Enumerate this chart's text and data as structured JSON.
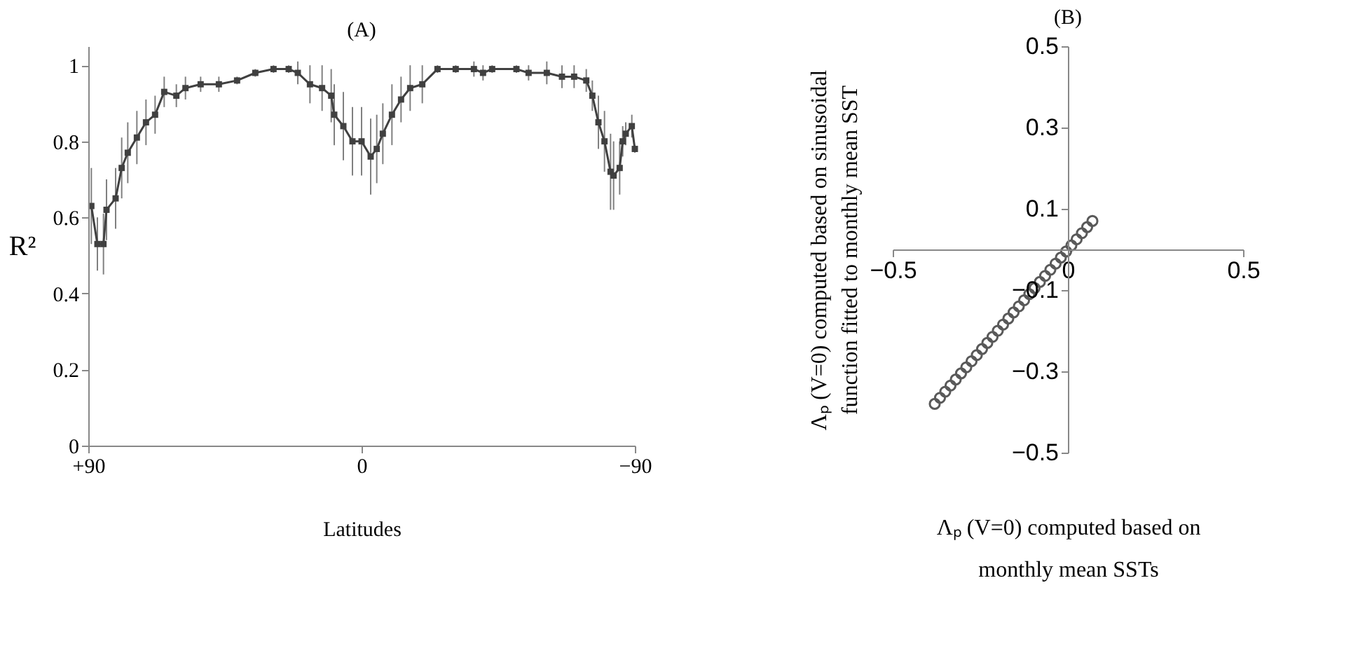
{
  "chart_data": [
    {
      "type": "line",
      "title": "(A)",
      "xlabel": "Latitudes",
      "ylabel": "R²",
      "x": [
        89,
        87,
        85,
        84,
        81,
        79,
        77,
        74,
        71,
        68,
        65,
        61,
        58,
        53,
        47,
        41,
        35,
        29,
        24,
        21,
        17,
        13,
        10,
        9,
        6,
        3,
        0,
        -3,
        -5,
        -7,
        -10,
        -13,
        -16,
        -20,
        -25,
        -31,
        -37,
        -40,
        -43,
        -51,
        -55,
        -61,
        -66,
        -70,
        -74,
        -76,
        -78,
        -80,
        -82,
        -83,
        -85,
        -86,
        -87,
        -89,
        -90
      ],
      "series": [
        {
          "color": "#404040",
          "values": [
            0.63,
            0.53,
            0.53,
            0.62,
            0.65,
            0.73,
            0.77,
            0.81,
            0.85,
            0.87,
            0.93,
            0.92,
            0.94,
            0.95,
            0.95,
            0.96,
            0.98,
            0.99,
            0.99,
            0.98,
            0.95,
            0.94,
            0.92,
            0.87,
            0.84,
            0.8,
            0.8,
            0.76,
            0.78,
            0.82,
            0.87,
            0.91,
            0.94,
            0.95,
            0.99,
            0.99,
            0.99,
            0.98,
            0.99,
            0.99,
            0.98,
            0.98,
            0.97,
            0.97,
            0.96,
            0.92,
            0.85,
            0.8,
            0.72,
            0.71,
            0.73,
            0.8,
            0.82,
            0.84,
            0.78
          ],
          "errors": [
            0.1,
            0.07,
            0.08,
            0.08,
            0.08,
            0.08,
            0.08,
            0.07,
            0.06,
            0.05,
            0.04,
            0.03,
            0.03,
            0.02,
            0.02,
            0.01,
            0.01,
            0.01,
            0.01,
            0.03,
            0.05,
            0.06,
            0.07,
            0.08,
            0.09,
            0.09,
            0.09,
            0.1,
            0.09,
            0.08,
            0.08,
            0.06,
            0.06,
            0.05,
            0.01,
            0.01,
            0.02,
            0.02,
            0.01,
            0.01,
            0.02,
            0.03,
            0.03,
            0.03,
            0.03,
            0.04,
            0.07,
            0.08,
            0.1,
            0.09,
            0.07,
            0.04,
            0.03,
            0.03,
            0.01
          ]
        }
      ],
      "xlim": [
        90,
        -90
      ],
      "xticks": [
        {
          "value": 90,
          "label": "+90"
        },
        0,
        -90
      ],
      "ylim": [
        0,
        1.05
      ],
      "yticks": [
        0,
        0.2,
        0.4,
        0.6,
        0.8,
        1
      ],
      "marker": "square",
      "grid": false
    },
    {
      "type": "scatter",
      "title": "(B)",
      "xlabel": "Λₚ (V=0) computed based on monthly mean SSTs",
      "ylabel": "Λₚ (V=0) computed based on sinusoidal function fitted to monthly mean SST",
      "x": [
        -0.38,
        -0.365,
        -0.35,
        -0.335,
        -0.32,
        -0.305,
        -0.29,
        -0.275,
        -0.26,
        -0.245,
        -0.23,
        -0.215,
        -0.2,
        -0.185,
        -0.17,
        -0.155,
        -0.14,
        -0.125,
        -0.11,
        -0.095,
        -0.08,
        -0.065,
        -0.05,
        -0.035,
        -0.02,
        -0.005,
        0.01,
        0.025,
        0.04,
        0.055,
        0.07
      ],
      "series": [
        {
          "color": "#595959",
          "values": [
            -0.38,
            -0.365,
            -0.35,
            -0.335,
            -0.32,
            -0.305,
            -0.29,
            -0.275,
            -0.26,
            -0.245,
            -0.23,
            -0.215,
            -0.2,
            -0.185,
            -0.17,
            -0.155,
            -0.14,
            -0.125,
            -0.11,
            -0.095,
            -0.08,
            -0.065,
            -0.05,
            -0.035,
            -0.02,
            -0.005,
            0.01,
            0.025,
            0.04,
            0.055,
            0.07
          ]
        }
      ],
      "xlim": [
        -0.5,
        0.5
      ],
      "xticks": [
        -0.5,
        0,
        0.5
      ],
      "ylim": [
        -0.5,
        0.5
      ],
      "yticks": [
        -0.5,
        -0.3,
        -0.1,
        0.1,
        0.3,
        0.5
      ],
      "marker": "circle",
      "grid": false
    }
  ]
}
